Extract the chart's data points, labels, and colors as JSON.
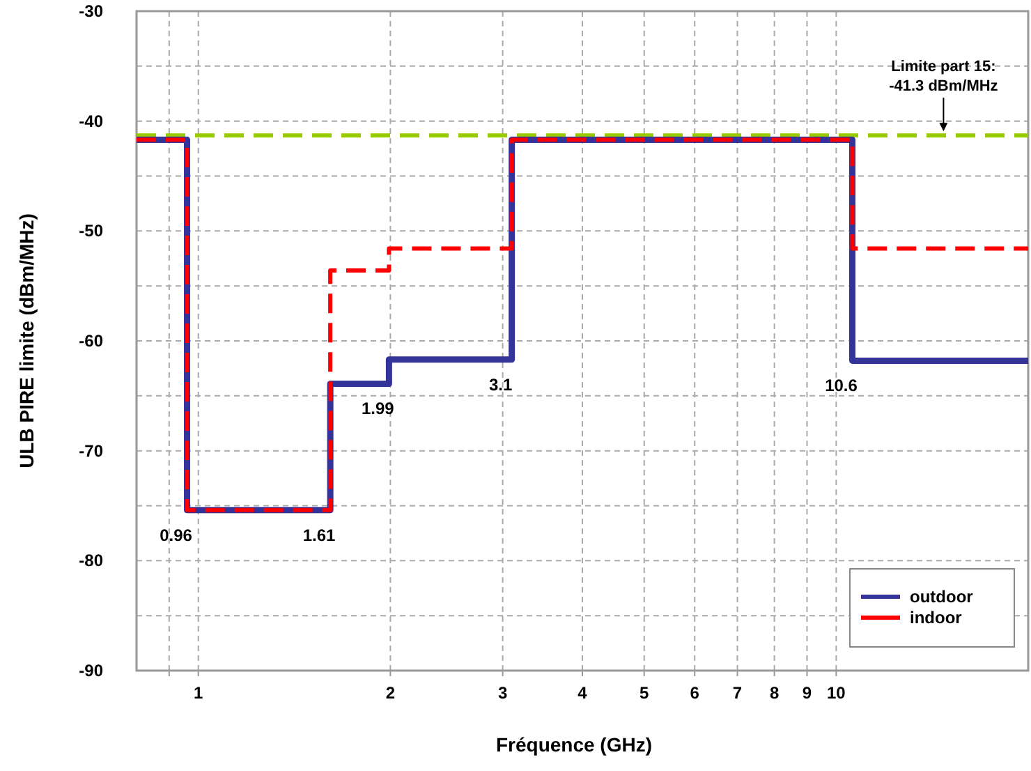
{
  "chart_data": {
    "type": "step",
    "xlabel": "Fréquence (GHz)",
    "ylabel": "ULB PIRE limite (dBm/MHz)",
    "log": "x",
    "grid": true,
    "legend": "bottom right",
    "x": [
      0.8,
      0.96,
      1.61,
      1.99,
      3.1,
      10.6,
      20
    ],
    "xlim": [
      0.8,
      20
    ],
    "xticks": [
      {
        "value": 0.9,
        "label": null
      },
      1,
      2,
      3,
      4,
      5,
      6,
      7,
      8,
      9,
      10
    ],
    "ylim": [
      -90,
      -30
    ],
    "yticks": [
      -90,
      {
        "value": -85,
        "label": null
      },
      -80,
      {
        "value": -75,
        "label": null
      },
      -70,
      {
        "value": -65,
        "label": null
      },
      -60,
      {
        "value": -55,
        "label": null
      },
      -50,
      {
        "value": -45,
        "label": null
      },
      -40,
      {
        "value": -35,
        "label": null
      },
      -30
    ],
    "series": [
      {
        "name": "outdoor",
        "color": "#333399",
        "line_style": "solid",
        "values": [
          -41.7,
          -75.4,
          -63.9,
          -61.7,
          -41.7,
          -61.8,
          -61.8
        ]
      },
      {
        "name": "indoor",
        "color": "#ff0000",
        "line_style": "dashed",
        "values": [
          -41.7,
          -75.4,
          -53.6,
          -51.6,
          -41.7,
          -51.6,
          -51.6
        ]
      }
    ],
    "ref_lines": [
      {
        "axis": "y",
        "value": -41.3,
        "label": "Limite part 15:\n-41.3 dBm/MHz",
        "color": "#99cc00",
        "line_style": "dashed"
      }
    ],
    "annotations": [
      {
        "text": "0.96",
        "x": 0.96,
        "y": -75.4
      },
      {
        "text": "1.61",
        "x": 1.61,
        "y": -75.4
      },
      {
        "text": "1.99",
        "x": 1.99,
        "y": -63.9
      },
      {
        "text": "3.1",
        "x": 3.1,
        "y": -61.7
      },
      {
        "text": "10.6",
        "x": 10.6,
        "y": -61.8
      }
    ]
  }
}
